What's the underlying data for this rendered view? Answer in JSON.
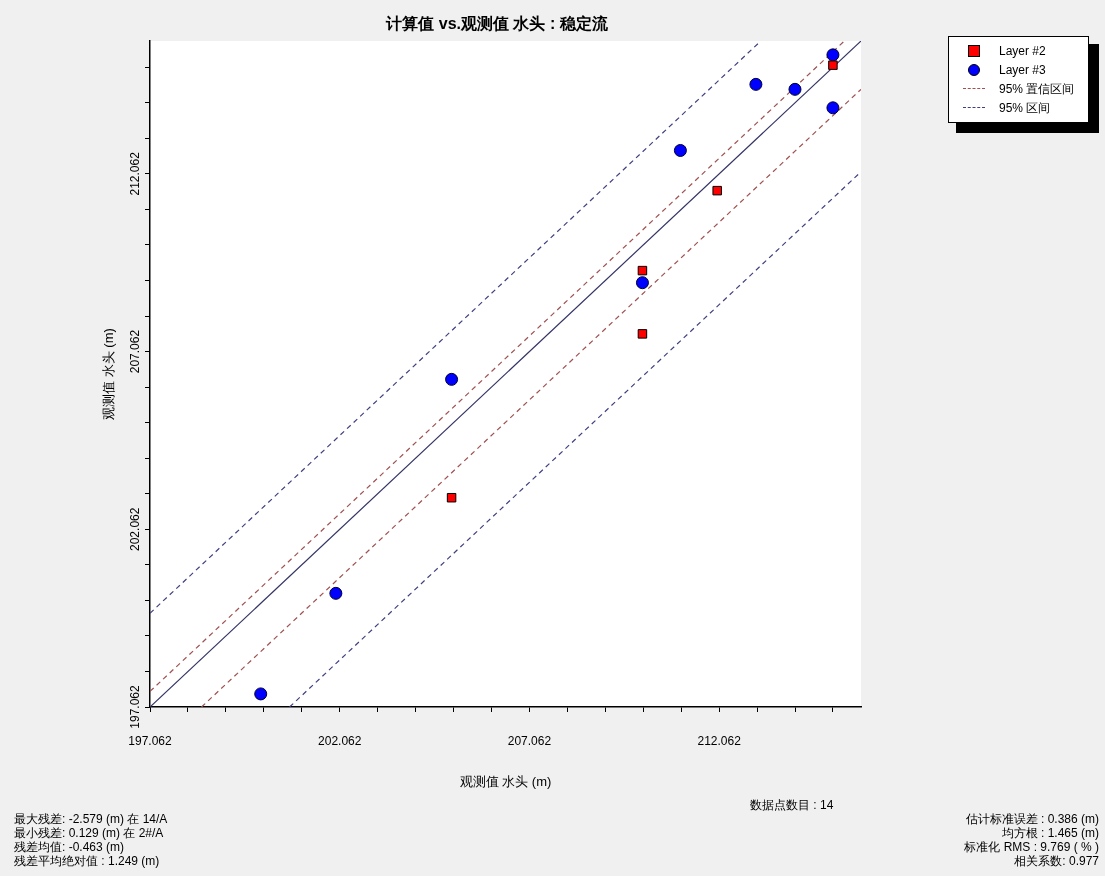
{
  "chart_data": {
    "type": "scatter",
    "title": "计算值 vs.观测值 水头 : 稳定流",
    "xlabel": "观测值 水头 (m)",
    "ylabel": "观测值 水头 (m)",
    "xlim": [
      197.062,
      215.8
    ],
    "ylim": [
      197.062,
      215.8
    ],
    "xticks": [
      197.062,
      {
        "value": 198.062,
        "label": null
      },
      {
        "value": 199.062,
        "label": null
      },
      {
        "value": 200.062,
        "label": null
      },
      {
        "value": 201.062,
        "label": null
      },
      202.062,
      {
        "value": 203.062,
        "label": null
      },
      {
        "value": 204.062,
        "label": null
      },
      {
        "value": 205.062,
        "label": null
      },
      {
        "value": 206.062,
        "label": null
      },
      207.062,
      {
        "value": 208.062,
        "label": null
      },
      {
        "value": 209.062,
        "label": null
      },
      {
        "value": 210.062,
        "label": null
      },
      {
        "value": 211.062,
        "label": null
      },
      212.062,
      {
        "value": 213.062,
        "label": null
      },
      {
        "value": 214.062,
        "label": null
      },
      {
        "value": 215.062,
        "label": null
      }
    ],
    "yticks": [
      197.062,
      {
        "value": 198.062,
        "label": null
      },
      {
        "value": 199.062,
        "label": null
      },
      {
        "value": 200.062,
        "label": null
      },
      {
        "value": 201.062,
        "label": null
      },
      202.062,
      {
        "value": 203.062,
        "label": null
      },
      {
        "value": 204.062,
        "label": null
      },
      {
        "value": 205.062,
        "label": null
      },
      {
        "value": 206.062,
        "label": null
      },
      207.062,
      {
        "value": 208.062,
        "label": null
      },
      {
        "value": 209.062,
        "label": null
      },
      {
        "value": 210.062,
        "label": null
      },
      {
        "value": 211.062,
        "label": null
      },
      212.062,
      {
        "value": 213.062,
        "label": null
      },
      {
        "value": 214.062,
        "label": null
      },
      {
        "value": 215.062,
        "label": null
      }
    ],
    "grid": false,
    "legend": "top right",
    "series": [
      {
        "type": "line",
        "color": "#333366",
        "line_style": "solid",
        "marker": "none",
        "x": [
          197.062,
          215.8
        ],
        "values": [
          197.062,
          215.8
        ]
      },
      {
        "type": "line",
        "name": "95% 置信区间",
        "color": "#a05050",
        "line_style": "dashed",
        "marker": "none",
        "x": [
          197.062,
          215.36
        ],
        "values": [
          197.5,
          215.8
        ]
      },
      {
        "type": "line",
        "color": "#a05050",
        "line_style": "dashed",
        "marker": "none",
        "x": [
          198.42,
          215.8
        ],
        "values": [
          197.062,
          214.44
        ]
      },
      {
        "type": "line",
        "name": "95% 区间",
        "color": "#404080",
        "line_style": "dashed",
        "marker": "none",
        "x": [
          197.062,
          213.16
        ],
        "values": [
          199.7,
          215.8
        ]
      },
      {
        "type": "line",
        "color": "#404080",
        "line_style": "dashed",
        "marker": "none",
        "x": [
          200.74,
          215.8
        ],
        "values": [
          197.062,
          212.12
        ]
      },
      {
        "type": "scatter",
        "name": "Layer #2",
        "color": "#ff0000",
        "marker": "square",
        "x": [
          215.06,
          212.01,
          210.04,
          210.04,
          205.01
        ],
        "values": [
          215.12,
          211.59,
          209.34,
          207.56,
          202.95
        ]
      },
      {
        "type": "scatter",
        "name": "Layer #3",
        "color": "#0000ff",
        "marker": "circle",
        "x": [
          215.06,
          213.03,
          214.06,
          215.06,
          211.04,
          210.04,
          205.01,
          201.96,
          199.98
        ],
        "values": [
          215.41,
          214.58,
          214.44,
          213.92,
          212.72,
          209.0,
          206.28,
          200.26,
          197.43
        ]
      }
    ],
    "annotations": [
      "最大残差: -2.579 (m) 在 14/A",
      "最小残差: 0.129 (m) 在 2#/A",
      "残差均值: -0.463 (m)",
      "残差平均绝对值 : 1.249 (m)",
      "数据点数目 : 14",
      "估计标准误差 : 0.386 (m)",
      "均方根 : 1.465 (m)",
      "标准化 RMS : 9.769 ( % )",
      "相关系数: 0.977"
    ]
  }
}
